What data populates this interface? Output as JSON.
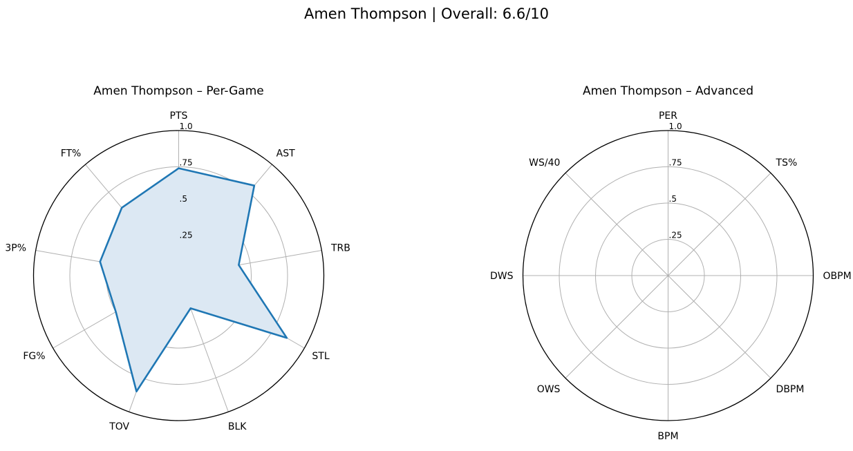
{
  "figure": {
    "title": "Amen Thompson | Overall: 6.6/10"
  },
  "chart_data": [
    {
      "type": "radar",
      "title": "Amen Thompson – Per-Game",
      "categories": [
        "PTS",
        "AST",
        "TRB",
        "STL",
        "BLK",
        "TOV",
        "FG%",
        "3P%",
        "FT%"
      ],
      "radial_ticks": [
        ".25",
        ".5",
        ".75",
        "1.0"
      ],
      "radial_tick_values": [
        0.25,
        0.5,
        0.75,
        1.0
      ],
      "rlim": [
        0,
        1.0
      ],
      "grid": true,
      "fill_color": "#dce8f3",
      "line_color": "#1f77b4",
      "series": [
        {
          "values": [
            0.74,
            0.81,
            0.42,
            0.86,
            0.24,
            0.85,
            0.5,
            0.55,
            0.61
          ]
        }
      ]
    },
    {
      "type": "radar",
      "title": "Amen Thompson – Advanced",
      "categories": [
        "PER",
        "TS%",
        "OBPM",
        "DBPM",
        "BPM",
        "OWS",
        "DWS",
        "WS/40"
      ],
      "radial_ticks": [
        ".25",
        ".5",
        ".75",
        "1.0"
      ],
      "radial_tick_values": [
        0.25,
        0.5,
        0.75,
        1.0
      ],
      "rlim": [
        0,
        1.0
      ],
      "grid": true,
      "series": []
    }
  ]
}
